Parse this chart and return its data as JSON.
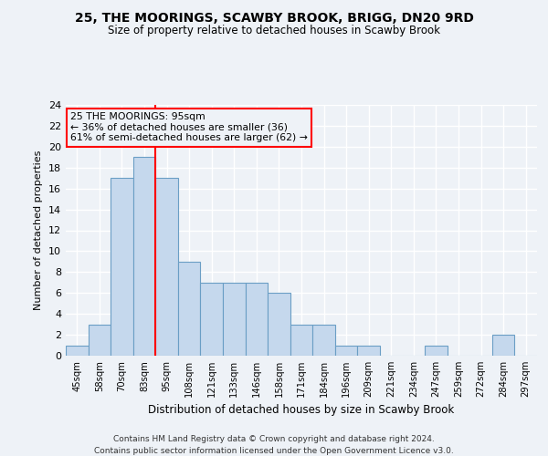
{
  "title1": "25, THE MOORINGS, SCAWBY BROOK, BRIGG, DN20 9RD",
  "title2": "Size of property relative to detached houses in Scawby Brook",
  "xlabel": "Distribution of detached houses by size in Scawby Brook",
  "ylabel": "Number of detached properties",
  "footnote1": "Contains HM Land Registry data © Crown copyright and database right 2024.",
  "footnote2": "Contains public sector information licensed under the Open Government Licence v3.0.",
  "categories": [
    "45sqm",
    "58sqm",
    "70sqm",
    "83sqm",
    "95sqm",
    "108sqm",
    "121sqm",
    "133sqm",
    "146sqm",
    "158sqm",
    "171sqm",
    "184sqm",
    "196sqm",
    "209sqm",
    "221sqm",
    "234sqm",
    "247sqm",
    "259sqm",
    "272sqm",
    "284sqm",
    "297sqm"
  ],
  "values": [
    1,
    3,
    17,
    19,
    17,
    9,
    7,
    7,
    7,
    6,
    3,
    3,
    1,
    1,
    0,
    0,
    1,
    0,
    0,
    2,
    0
  ],
  "bar_color": "#c5d8ed",
  "bar_edge_color": "#6a9ec5",
  "red_line_index": 4,
  "annotation_title": "25 THE MOORINGS: 95sqm",
  "annotation_line1": "← 36% of detached houses are smaller (36)",
  "annotation_line2": "61% of semi-detached houses are larger (62) →",
  "ylim": [
    0,
    24
  ],
  "yticks": [
    0,
    2,
    4,
    6,
    8,
    10,
    12,
    14,
    16,
    18,
    20,
    22,
    24
  ],
  "bg_color": "#eef2f7",
  "grid_color": "#ffffff",
  "title1_fontsize": 10,
  "title2_fontsize": 8.5
}
